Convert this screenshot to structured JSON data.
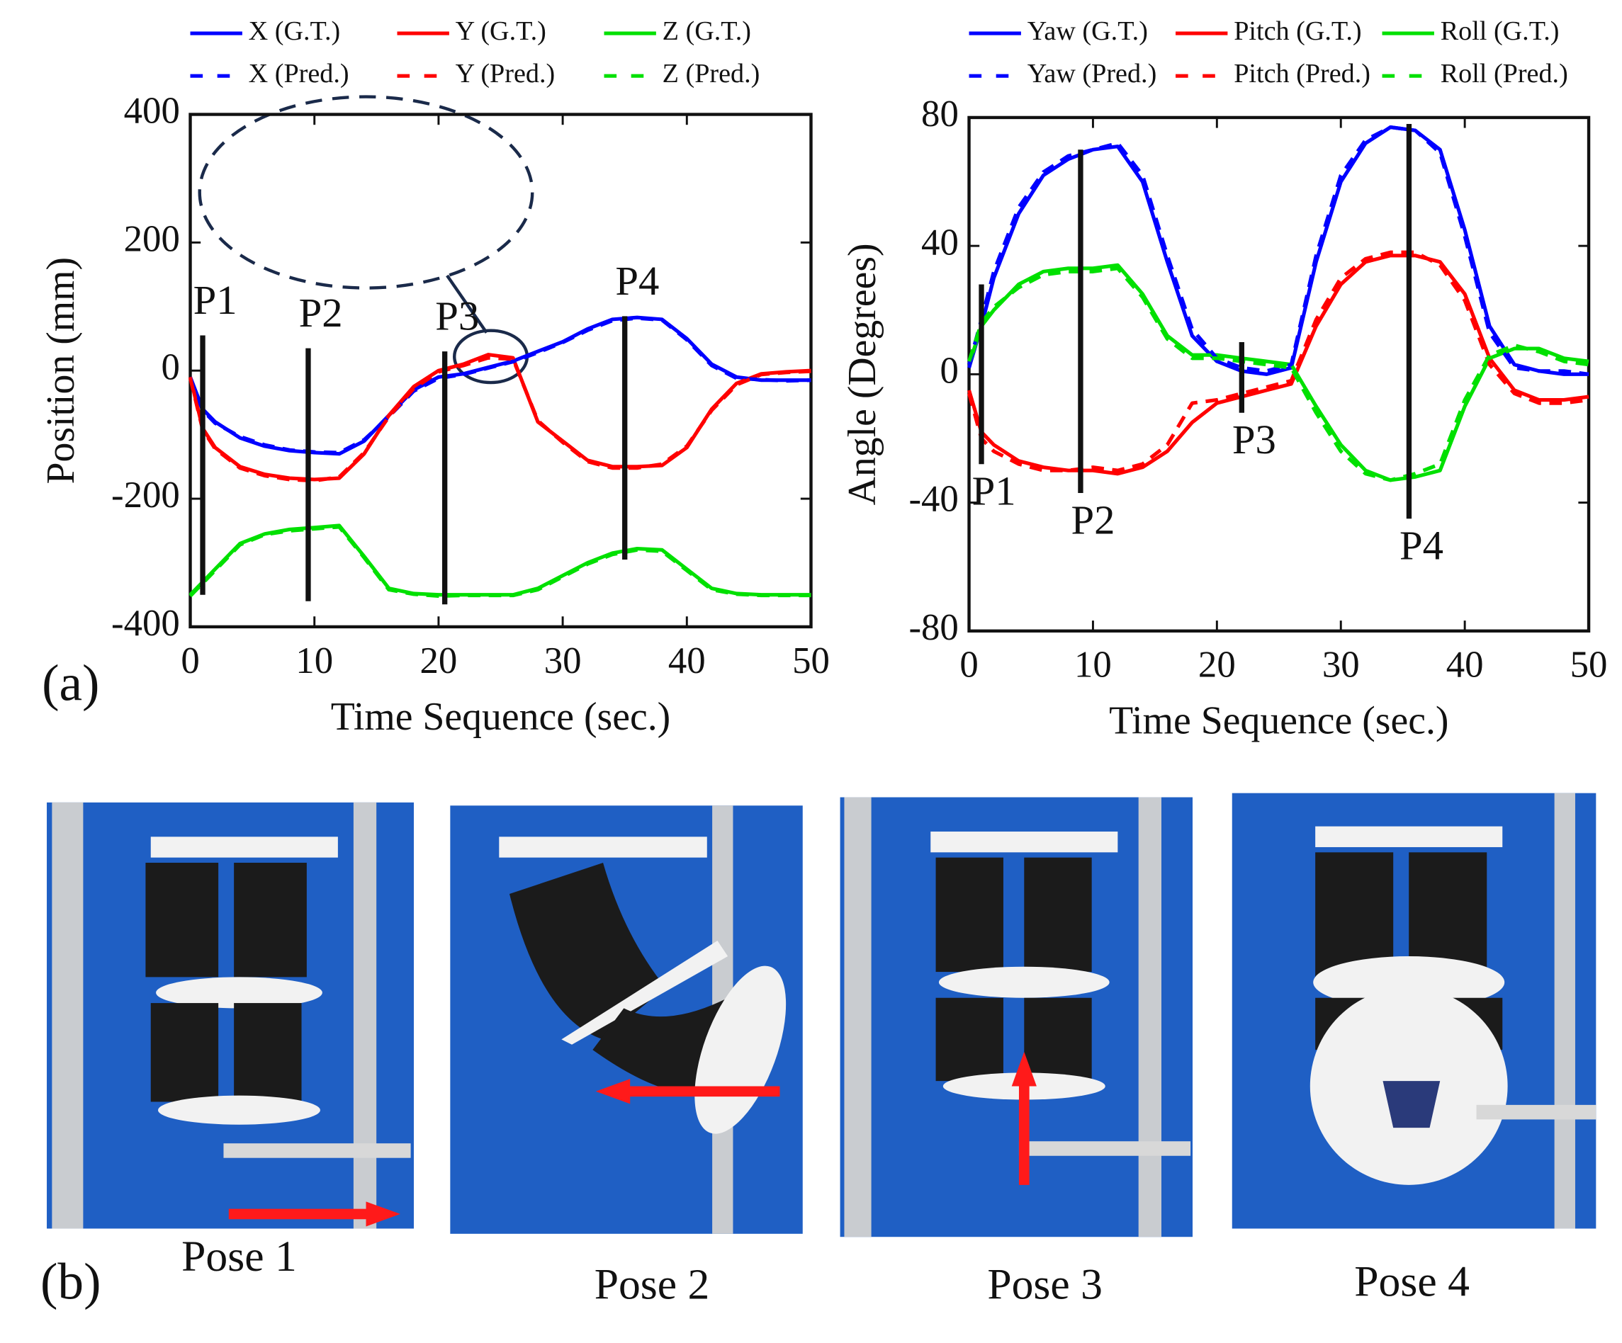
{
  "figure": {
    "panel_a": "(a)",
    "panel_b": "(b)",
    "poses": [
      "Pose 1",
      "Pose 2",
      "Pose 3",
      "Pose 4"
    ]
  },
  "chart_data": [
    {
      "type": "line",
      "xlabel": "Time Sequence (sec.)",
      "ylabel": "Position (mm)",
      "x": [
        0,
        1,
        2,
        4,
        6,
        8,
        10,
        12,
        14,
        16,
        18,
        20,
        22,
        24,
        26,
        28,
        30,
        32,
        34,
        36,
        38,
        40,
        42,
        44,
        46,
        48,
        50
      ],
      "xlim": [
        0,
        50
      ],
      "xticks": [
        0,
        10,
        20,
        30,
        40,
        50
      ],
      "ylim": [
        -400,
        400
      ],
      "yticks": [
        -400,
        -200,
        0,
        200,
        400
      ],
      "series": [
        {
          "name": "X (G.T.)",
          "color": "#0000ff",
          "dashed": false,
          "values": [
            -10,
            -60,
            -80,
            -105,
            -118,
            -125,
            -128,
            -130,
            -110,
            -70,
            -30,
            -10,
            -5,
            5,
            15,
            30,
            45,
            65,
            80,
            83,
            80,
            50,
            10,
            -10,
            -15,
            -15,
            -15
          ]
        },
        {
          "name": "Y (G.T.)",
          "color": "#ff0000",
          "dashed": false,
          "values": [
            -10,
            -90,
            -120,
            -150,
            -162,
            -168,
            -170,
            -168,
            -130,
            -70,
            -25,
            0,
            10,
            25,
            20,
            -80,
            -110,
            -140,
            -150,
            -150,
            -148,
            -120,
            -60,
            -20,
            -5,
            -2,
            0
          ]
        },
        {
          "name": "Z (G.T.)",
          "color": "#00e000",
          "dashed": false,
          "values": [
            -350,
            -330,
            -310,
            -270,
            -255,
            -248,
            -245,
            -242,
            -290,
            -340,
            -348,
            -350,
            -350,
            -350,
            -350,
            -340,
            -320,
            -300,
            -285,
            -278,
            -280,
            -310,
            -340,
            -348,
            -350,
            -350,
            -350
          ]
        },
        {
          "name": "X (Pred.)",
          "color": "#0000ff",
          "dashed": true,
          "values": [
            -12,
            -62,
            -82,
            -103,
            -116,
            -124,
            -127,
            -128,
            -108,
            -72,
            -32,
            -12,
            -6,
            4,
            14,
            28,
            44,
            63,
            78,
            82,
            79,
            48,
            8,
            -12,
            -14,
            -16,
            -15
          ]
        },
        {
          "name": "Y (Pred.)",
          "color": "#ff0000",
          "dashed": true,
          "values": [
            -12,
            -92,
            -122,
            -152,
            -164,
            -170,
            -172,
            -166,
            -128,
            -72,
            -28,
            -2,
            8,
            20,
            18,
            -78,
            -112,
            -142,
            -152,
            -152,
            -146,
            -118,
            -62,
            -22,
            -6,
            -3,
            -1
          ]
        },
        {
          "name": "Z (Pred.)",
          "color": "#00e000",
          "dashed": true,
          "values": [
            -352,
            -332,
            -312,
            -272,
            -256,
            -250,
            -247,
            -244,
            -292,
            -342,
            -349,
            -352,
            -351,
            -351,
            -351,
            -342,
            -322,
            -302,
            -287,
            -280,
            -282,
            -312,
            -342,
            -349,
            -351,
            -351,
            -351
          ]
        }
      ],
      "label_side": "top",
      "annotations": [
        {
          "text": "P1",
          "x": 1,
          "span": [
            55,
            -350
          ]
        },
        {
          "text": "P2",
          "x": 9.5,
          "span": [
            35,
            -360
          ]
        },
        {
          "text": "P3",
          "x": 20.5,
          "span": [
            30,
            -365
          ]
        },
        {
          "text": "P4",
          "x": 35,
          "span": [
            85,
            -295
          ]
        }
      ]
    },
    {
      "type": "line",
      "xlabel": "Time Sequence (sec.)",
      "ylabel": "Angle (Degrees)",
      "x": [
        0,
        1,
        2,
        4,
        6,
        8,
        10,
        12,
        14,
        16,
        18,
        20,
        22,
        24,
        26,
        28,
        30,
        32,
        34,
        36,
        38,
        40,
        42,
        44,
        46,
        48,
        50
      ],
      "xlim": [
        0,
        50
      ],
      "xticks": [
        0,
        10,
        20,
        30,
        40,
        50
      ],
      "ylim": [
        -80,
        80
      ],
      "yticks": [
        -80,
        -40,
        0,
        40,
        80
      ],
      "series": [
        {
          "name": "Yaw (G.T.)",
          "color": "#0000ff",
          "dashed": false,
          "values": [
            2,
            15,
            30,
            50,
            62,
            67,
            70,
            71,
            60,
            35,
            12,
            4,
            1,
            0,
            2,
            35,
            60,
            72,
            77,
            76,
            70,
            45,
            15,
            3,
            1,
            0,
            0
          ]
        },
        {
          "name": "Pitch (G.T.)",
          "color": "#ff0000",
          "dashed": false,
          "values": [
            -5,
            -18,
            -22,
            -27,
            -29,
            -30,
            -30,
            -31,
            -29,
            -24,
            -15,
            -9,
            -7,
            -5,
            -3,
            15,
            28,
            35,
            37,
            37,
            35,
            25,
            5,
            -5,
            -8,
            -8,
            -7
          ]
        },
        {
          "name": "Roll (G.T.)",
          "color": "#00e000",
          "dashed": false,
          "values": [
            3,
            15,
            20,
            28,
            32,
            33,
            33,
            34,
            25,
            12,
            6,
            6,
            5,
            4,
            3,
            -10,
            -22,
            -30,
            -33,
            -32,
            -30,
            -10,
            5,
            8,
            8,
            5,
            4
          ]
        },
        {
          "name": "Yaw (Pred.)",
          "color": "#0000ff",
          "dashed": true,
          "values": [
            3,
            17,
            32,
            52,
            63,
            68,
            70,
            72,
            62,
            37,
            14,
            5,
            2,
            1,
            3,
            37,
            62,
            73,
            77,
            76,
            69,
            43,
            13,
            2,
            1,
            1,
            0
          ]
        },
        {
          "name": "Pitch (Pred.)",
          "color": "#ff0000",
          "dashed": true,
          "values": [
            -6,
            -20,
            -24,
            -28,
            -30,
            -30,
            -29,
            -30,
            -28,
            -22,
            -9,
            -8,
            -6,
            -4,
            -2,
            17,
            30,
            36,
            38,
            38,
            34,
            23,
            3,
            -6,
            -9,
            -9,
            -8
          ]
        },
        {
          "name": "Roll (Pred.)",
          "color": "#00e000",
          "dashed": true,
          "values": [
            4,
            16,
            21,
            27,
            31,
            32,
            32,
            33,
            24,
            11,
            5,
            5,
            4,
            3,
            2,
            -12,
            -24,
            -31,
            -33,
            -31,
            -28,
            -8,
            6,
            9,
            7,
            4,
            3
          ]
        }
      ],
      "label_side": "bottom",
      "annotations": [
        {
          "text": "P1",
          "x": 1,
          "span": [
            28,
            -28
          ]
        },
        {
          "text": "P2",
          "x": 9,
          "span": [
            70,
            -37
          ]
        },
        {
          "text": "P3",
          "x": 22,
          "span": [
            10,
            -12
          ]
        },
        {
          "text": "P4",
          "x": 35.5,
          "span": [
            78,
            -45
          ]
        }
      ]
    }
  ]
}
